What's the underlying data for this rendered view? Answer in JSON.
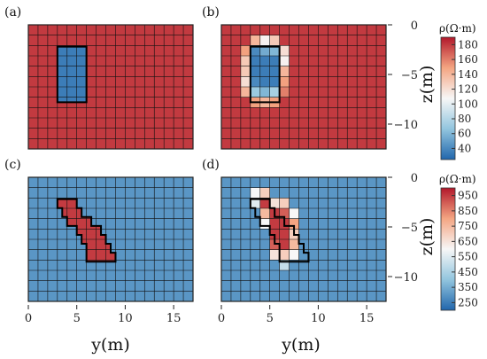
{
  "colors": {
    "low": "#2166ac",
    "mid": "#f7f7f7",
    "high": "#b2182b",
    "grid": "#111111",
    "outline": "#000000"
  },
  "chart_data": [
    {
      "type": "heatmap",
      "panel_label": "(a)",
      "grid": {
        "cols": 17,
        "rows": 12,
        "y_range": [
          0,
          17
        ],
        "z_range": [
          0,
          -12.5
        ]
      },
      "background_value": 180,
      "anomaly": {
        "shape": "rectangle",
        "y": [
          3,
          6
        ],
        "z": [
          -2.2,
          -7.8
        ],
        "value": 35
      },
      "show_y_ticks": false,
      "show_z_ticks": false
    },
    {
      "type": "heatmap",
      "panel_label": "(b)",
      "grid": {
        "cols": 17,
        "rows": 12,
        "y_range": [
          0,
          17
        ],
        "z_range": [
          0,
          -12.5
        ]
      },
      "background_value": 180,
      "outline": {
        "shape": "rectangle",
        "y": [
          3,
          6
        ],
        "z": [
          -2.2,
          -7.8
        ]
      },
      "cells": [
        {
          "col": 3,
          "row": 1,
          "value": 140
        },
        {
          "col": 4,
          "row": 1,
          "value": 110
        },
        {
          "col": 5,
          "row": 1,
          "value": 130
        },
        {
          "col": 2,
          "row": 2,
          "value": 150
        },
        {
          "col": 3,
          "row": 2,
          "value": 40
        },
        {
          "col": 4,
          "row": 2,
          "value": 55
        },
        {
          "col": 5,
          "row": 2,
          "value": 60
        },
        {
          "col": 6,
          "row": 2,
          "value": 120
        },
        {
          "col": 2,
          "row": 3,
          "value": 130
        },
        {
          "col": 3,
          "row": 3,
          "value": 35
        },
        {
          "col": 4,
          "row": 3,
          "value": 35
        },
        {
          "col": 5,
          "row": 3,
          "value": 35
        },
        {
          "col": 6,
          "row": 3,
          "value": 110
        },
        {
          "col": 2,
          "row": 4,
          "value": 130
        },
        {
          "col": 3,
          "row": 4,
          "value": 35
        },
        {
          "col": 4,
          "row": 4,
          "value": 35
        },
        {
          "col": 5,
          "row": 4,
          "value": 35
        },
        {
          "col": 6,
          "row": 4,
          "value": 140
        },
        {
          "col": 2,
          "row": 5,
          "value": 120
        },
        {
          "col": 3,
          "row": 5,
          "value": 40
        },
        {
          "col": 4,
          "row": 5,
          "value": 35
        },
        {
          "col": 5,
          "row": 5,
          "value": 35
        },
        {
          "col": 6,
          "row": 5,
          "value": 150
        },
        {
          "col": 2,
          "row": 6,
          "value": 140
        },
        {
          "col": 3,
          "row": 6,
          "value": 70
        },
        {
          "col": 4,
          "row": 6,
          "value": 60
        },
        {
          "col": 5,
          "row": 6,
          "value": 75
        },
        {
          "col": 6,
          "row": 6,
          "value": 160
        },
        {
          "col": 3,
          "row": 7,
          "value": 150
        },
        {
          "col": 4,
          "row": 7,
          "value": 140
        },
        {
          "col": 5,
          "row": 7,
          "value": 150
        }
      ],
      "show_y_ticks": false,
      "show_z_ticks": true
    },
    {
      "type": "heatmap",
      "panel_label": "(c)",
      "grid": {
        "cols": 17,
        "rows": 12,
        "y_range": [
          0,
          17
        ],
        "z_range": [
          0,
          -12.5
        ]
      },
      "background_value": 300,
      "anomaly": {
        "shape": "parallelogram",
        "steps": [
          [
            3,
            5
          ],
          [
            3.5,
            5.5
          ],
          [
            4,
            6.5
          ],
          [
            5,
            7.5
          ],
          [
            5.5,
            8
          ],
          [
            6,
            8.5
          ],
          [
            6,
            9
          ]
        ],
        "z": [
          -2.2,
          -8.5
        ],
        "value": 950
      },
      "show_y_ticks": true,
      "show_z_ticks": false
    },
    {
      "type": "heatmap",
      "panel_label": "(d)",
      "grid": {
        "cols": 17,
        "rows": 12,
        "y_range": [
          0,
          17
        ],
        "z_range": [
          0,
          -12.5
        ]
      },
      "background_value": 300,
      "outline": {
        "shape": "parallelogram",
        "steps": [
          [
            3,
            5
          ],
          [
            3.5,
            5.5
          ],
          [
            4,
            6.5
          ],
          [
            5,
            7.5
          ],
          [
            5.5,
            8
          ],
          [
            6,
            8.5
          ],
          [
            6,
            9
          ]
        ],
        "z": [
          -2.2,
          -8.5
        ]
      },
      "cells": [
        {
          "col": 3,
          "row": 1,
          "value": 600
        },
        {
          "col": 4,
          "row": 1,
          "value": 700
        },
        {
          "col": 3,
          "row": 2,
          "value": 550
        },
        {
          "col": 4,
          "row": 2,
          "value": 950
        },
        {
          "col": 5,
          "row": 2,
          "value": 650
        },
        {
          "col": 6,
          "row": 2,
          "value": 700
        },
        {
          "col": 4,
          "row": 3,
          "value": 750
        },
        {
          "col": 5,
          "row": 3,
          "value": 950
        },
        {
          "col": 6,
          "row": 3,
          "value": 900
        },
        {
          "col": 7,
          "row": 3,
          "value": 600
        },
        {
          "col": 4,
          "row": 4,
          "value": 600
        },
        {
          "col": 5,
          "row": 4,
          "value": 950
        },
        {
          "col": 6,
          "row": 4,
          "value": 950
        },
        {
          "col": 7,
          "row": 4,
          "value": 800
        },
        {
          "col": 5,
          "row": 5,
          "value": 950
        },
        {
          "col": 6,
          "row": 5,
          "value": 950
        },
        {
          "col": 7,
          "row": 5,
          "value": 700
        },
        {
          "col": 5,
          "row": 6,
          "value": 900
        },
        {
          "col": 6,
          "row": 6,
          "value": 950
        },
        {
          "col": 7,
          "row": 6,
          "value": 750
        },
        {
          "col": 5,
          "row": 7,
          "value": 650
        },
        {
          "col": 6,
          "row": 7,
          "value": 700
        },
        {
          "col": 7,
          "row": 7,
          "value": 600
        },
        {
          "col": 6,
          "row": 8,
          "value": 500
        }
      ],
      "show_y_ticks": true,
      "show_z_ticks": true
    }
  ],
  "axes": {
    "x_label": "y(m)",
    "z_label": "z(m)",
    "x_ticks": [
      "0",
      "5",
      "10",
      "15"
    ],
    "x_tick_values": [
      0,
      5,
      10,
      15
    ],
    "z_ticks": [
      "0",
      "−5",
      "−10"
    ],
    "z_tick_values": [
      0,
      -5,
      -10
    ]
  },
  "colorbars": [
    {
      "title": "ρ(Ω·m)",
      "min": 25,
      "max": 190,
      "ticks": [
        "180",
        "160",
        "140",
        "120",
        "100",
        "80",
        "60",
        "40"
      ],
      "tick_values": [
        180,
        160,
        140,
        120,
        100,
        80,
        60,
        40
      ]
    },
    {
      "title": "ρ(Ω·m)",
      "min": 200,
      "max": 1000,
      "ticks": [
        "950",
        "850",
        "750",
        "650",
        "550",
        "450",
        "350",
        "250"
      ],
      "tick_values": [
        950,
        850,
        750,
        650,
        550,
        450,
        350,
        250
      ]
    }
  ]
}
